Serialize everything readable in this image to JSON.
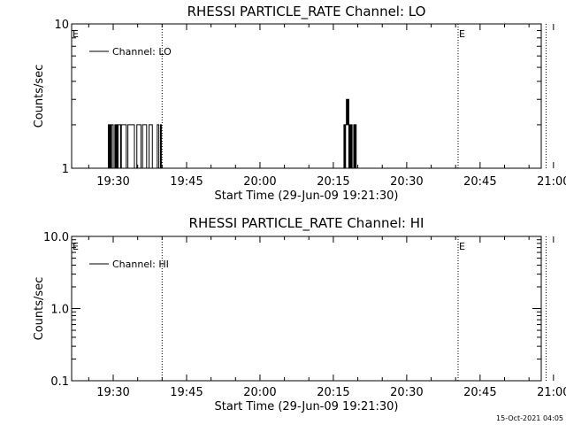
{
  "chart_data": [
    {
      "type": "line",
      "title": "RHESSI PARTICLE_RATE Channel: LO",
      "xlabel": "Start Time (29-Jun-09 19:21:30)",
      "ylabel": "Counts/sec",
      "y_scale": "log",
      "ylim": [
        1,
        10
      ],
      "y_ticks": [
        {
          "value": 1,
          "label": "1"
        },
        {
          "value": 10,
          "label": "10"
        }
      ],
      "x_ticks": [
        "19:30",
        "19:45",
        "20:00",
        "20:15",
        "20:30",
        "20:45",
        "21:00"
      ],
      "legend": {
        "label": "Channel: LO",
        "placement": "top-left"
      },
      "eclipse_markers": [
        {
          "time": "19:21:30",
          "label": "E"
        },
        {
          "time": "20:40:30",
          "label": "E"
        }
      ],
      "dotted_lines": [
        "19:40:00",
        "20:40:30",
        "20:58:30"
      ],
      "series": [
        {
          "x": [
            "19:28:50",
            "19:29:00",
            "19:29:10",
            "19:29:20",
            "19:29:30",
            "19:29:40",
            "19:29:50",
            "19:30:00",
            "19:30:10",
            "19:30:20",
            "19:30:30",
            "19:30:40",
            "19:30:50",
            "19:31:00",
            "19:31:10",
            "19:31:20",
            "19:31:30",
            "19:31:40",
            "19:31:50",
            "19:32:00",
            "19:32:10",
            "19:32:20",
            "19:32:30",
            "19:32:40",
            "19:32:50",
            "19:33:00",
            "19:33:10",
            "19:33:20",
            "19:33:30",
            "19:33:40",
            "19:33:50",
            "19:34:00",
            "19:34:10",
            "19:34:20",
            "19:34:30",
            "19:34:40",
            "19:34:50",
            "19:35:00",
            "19:35:10",
            "19:35:20",
            "19:35:30",
            "19:35:40",
            "19:35:50",
            "19:36:00",
            "19:36:10",
            "19:36:20",
            "19:36:30",
            "19:36:40",
            "19:36:50",
            "19:37:00",
            "19:37:10",
            "19:37:20",
            "19:37:30",
            "19:37:40",
            "19:37:50",
            "19:38:00",
            "19:38:10",
            "19:38:20",
            "19:38:30",
            "19:38:40",
            "19:38:50",
            "19:39:00",
            "19:39:10",
            "19:39:20",
            "19:39:30",
            "19:39:40",
            "19:39:50",
            "19:40:00",
            "20:17:00",
            "20:17:10",
            "20:17:20",
            "20:17:30",
            "20:17:40",
            "20:17:50",
            "20:18:00",
            "20:18:10",
            "20:18:20",
            "20:18:30",
            "20:18:40",
            "20:18:50",
            "20:19:00",
            "20:19:10",
            "20:19:20",
            "20:19:30",
            "20:19:40",
            "20:19:50",
            "20:20:00"
          ],
          "values": [
            1,
            2,
            1,
            2,
            1,
            2,
            2,
            1,
            1,
            2,
            1,
            2,
            1,
            2,
            2,
            2,
            1,
            2,
            2,
            2,
            2,
            2,
            2,
            1,
            1,
            2,
            2,
            2,
            2,
            2,
            2,
            2,
            2,
            1,
            1,
            1,
            2,
            2,
            2,
            2,
            2,
            1,
            1,
            2,
            2,
            2,
            2,
            2,
            1,
            1,
            1,
            2,
            2,
            2,
            2,
            1,
            1,
            1,
            1,
            1,
            1,
            2,
            2,
            1,
            1,
            2,
            1,
            1,
            1,
            2,
            1,
            2,
            3,
            2,
            3,
            1,
            2,
            1,
            2,
            1,
            1,
            2,
            1,
            2,
            1,
            1,
            1
          ]
        }
      ]
    },
    {
      "type": "line",
      "title": "RHESSI PARTICLE_RATE Channel: HI",
      "xlabel": "Start Time (29-Jun-09 19:21:30)",
      "ylabel": "Counts/sec",
      "y_scale": "log",
      "ylim": [
        0.1,
        10
      ],
      "y_ticks": [
        {
          "value": 0.1,
          "label": "0.1"
        },
        {
          "value": 1,
          "label": "1.0"
        },
        {
          "value": 10,
          "label": "10.0"
        }
      ],
      "x_ticks": [
        "19:30",
        "19:45",
        "20:00",
        "20:15",
        "20:30",
        "20:45",
        "21:00"
      ],
      "legend": {
        "label": "Channel: HI",
        "placement": "top-left"
      },
      "eclipse_markers": [
        {
          "time": "19:21:30",
          "label": "E"
        },
        {
          "time": "20:40:30",
          "label": "E"
        }
      ],
      "dotted_lines": [
        "19:40:00",
        "20:40:30",
        "20:58:30"
      ],
      "series": [
        {
          "x": [],
          "values": []
        }
      ]
    }
  ],
  "timestamp": "15-Oct-2021 04:05"
}
